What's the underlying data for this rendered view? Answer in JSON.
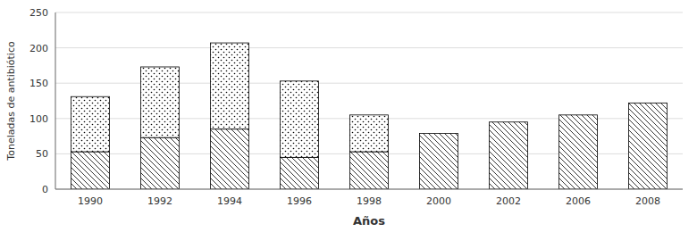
{
  "chart_data": {
    "type": "bar",
    "stacked": true,
    "grid": true,
    "xlabel": "Años",
    "ylabel": "Toneladas de antibiótico",
    "categories": [
      "1990",
      "1992",
      "1994",
      "1996",
      "1998",
      "2000",
      "2002",
      "2006",
      "2008"
    ],
    "series": [
      {
        "color": "black",
        "values": [
          53,
          73,
          85,
          45,
          53,
          79,
          95,
          105,
          122
        ]
      },
      {
        "color": "black",
        "values": [
          78,
          100,
          122,
          108,
          52,
          0,
          0,
          0,
          0
        ]
      }
    ],
    "ylim": [
      0,
      250
    ],
    "yticks": [
      0,
      50,
      100,
      150,
      200,
      250
    ]
  }
}
